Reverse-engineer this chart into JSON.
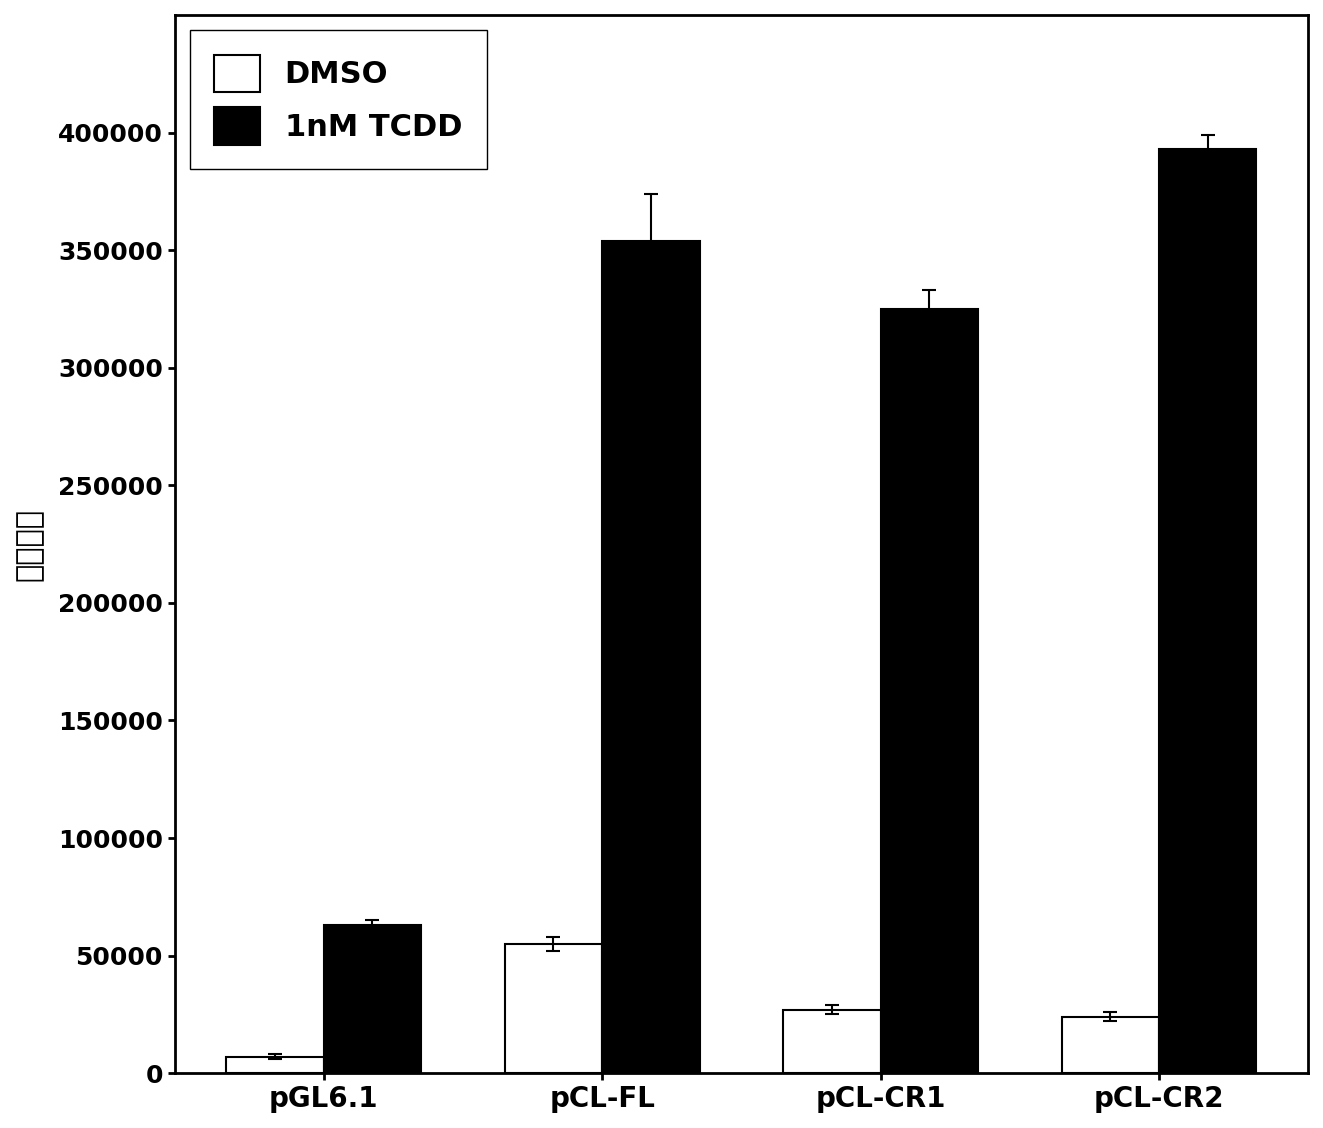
{
  "categories": [
    "pGL6.1",
    "pCL-FL",
    "pCL-CR1",
    "pCL-CR2"
  ],
  "dmso_values": [
    7000,
    55000,
    27000,
    24000
  ],
  "tcdd_values": [
    63000,
    354000,
    325000,
    393000
  ],
  "dmso_errors": [
    1000,
    3000,
    2000,
    2000
  ],
  "tcdd_errors": [
    2000,
    20000,
    8000,
    6000
  ],
  "ylabel": "荧光强度",
  "ylim": [
    0,
    450000
  ],
  "yticks": [
    0,
    50000,
    100000,
    150000,
    200000,
    250000,
    300000,
    350000,
    400000
  ],
  "legend_dmso": "DMSO",
  "legend_tcdd": "1nM TCDD",
  "bar_width": 0.35,
  "dmso_color": "#ffffff",
  "tcdd_color": "#000000",
  "edge_color": "#000000",
  "background_color": "#ffffff",
  "font_size_ticks": 18,
  "font_size_ylabel": 22,
  "font_size_legend": 22,
  "font_size_xticks": 20
}
